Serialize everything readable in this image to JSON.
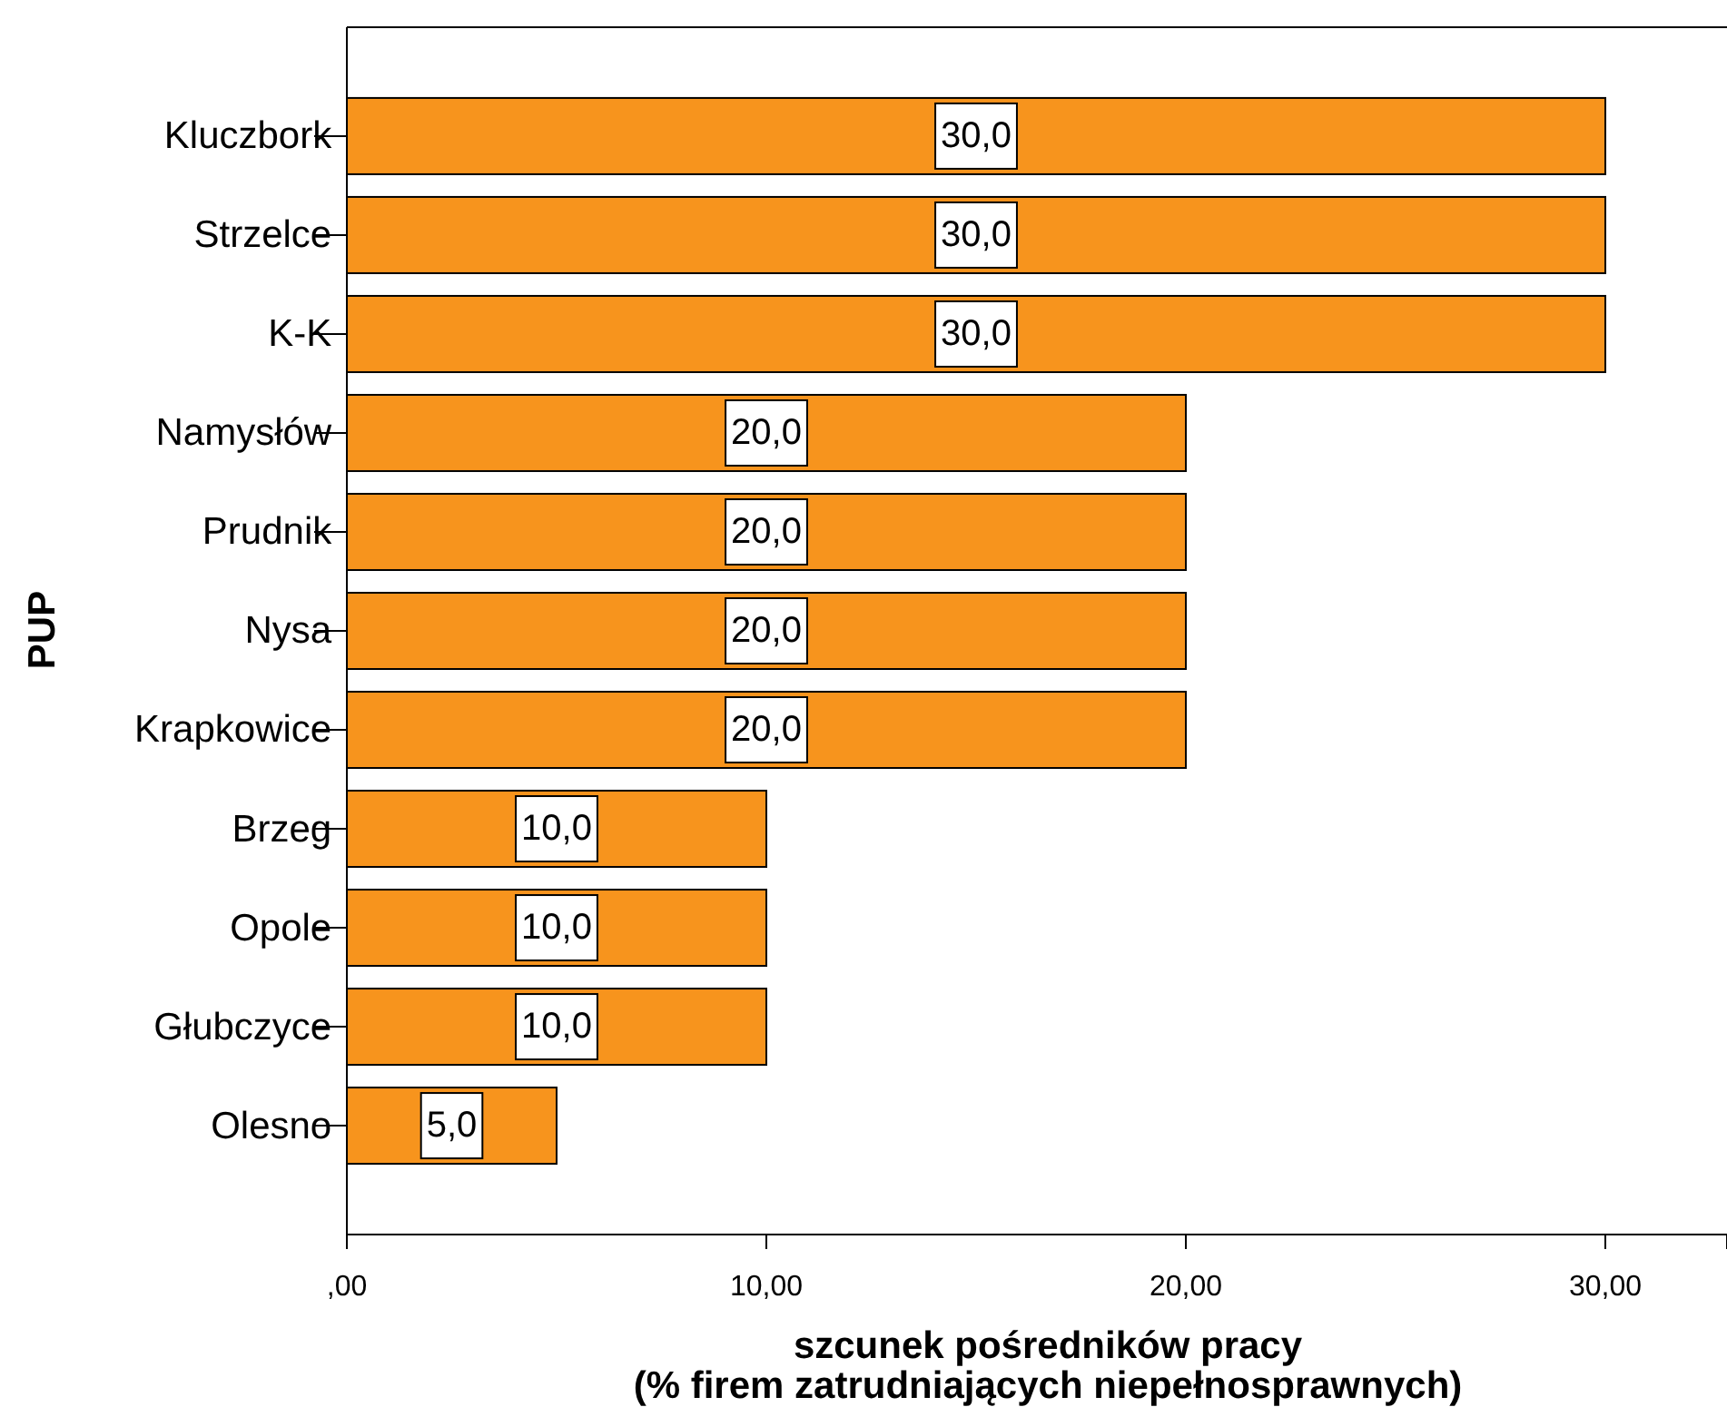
{
  "chart_data": {
    "type": "bar",
    "orientation": "horizontal",
    "xlabel": "szcunek pośredników pracy\n(% firem zatrudniających niepełnosprawnych)",
    "ylabel": "PUP",
    "categories": [
      "Kluczbork",
      "Strzelce",
      "K-K",
      "Namysłów",
      "Prudnik",
      "Nysa",
      "Krapkowice",
      "Brzeg",
      "Opole",
      "Głubczyce",
      "Olesno"
    ],
    "values": [
      30,
      30,
      30,
      20,
      20,
      20,
      20,
      10,
      10,
      10,
      5
    ],
    "value_labels": [
      "30,0",
      "30,0",
      "30,0",
      "20,0",
      "20,0",
      "20,0",
      "20,0",
      "10,0",
      "10,0",
      "10,0",
      "5,0"
    ],
    "color": "#f7941d",
    "xlim": [
      0,
      32.9
    ],
    "xticks": [
      {
        "value": 0,
        "label": ",00"
      },
      {
        "value": 10,
        "label": "10,00"
      },
      {
        "value": 20,
        "label": "20,00"
      },
      {
        "value": 30,
        "label": "30,00"
      }
    ],
    "grid": false,
    "legend": false
  }
}
